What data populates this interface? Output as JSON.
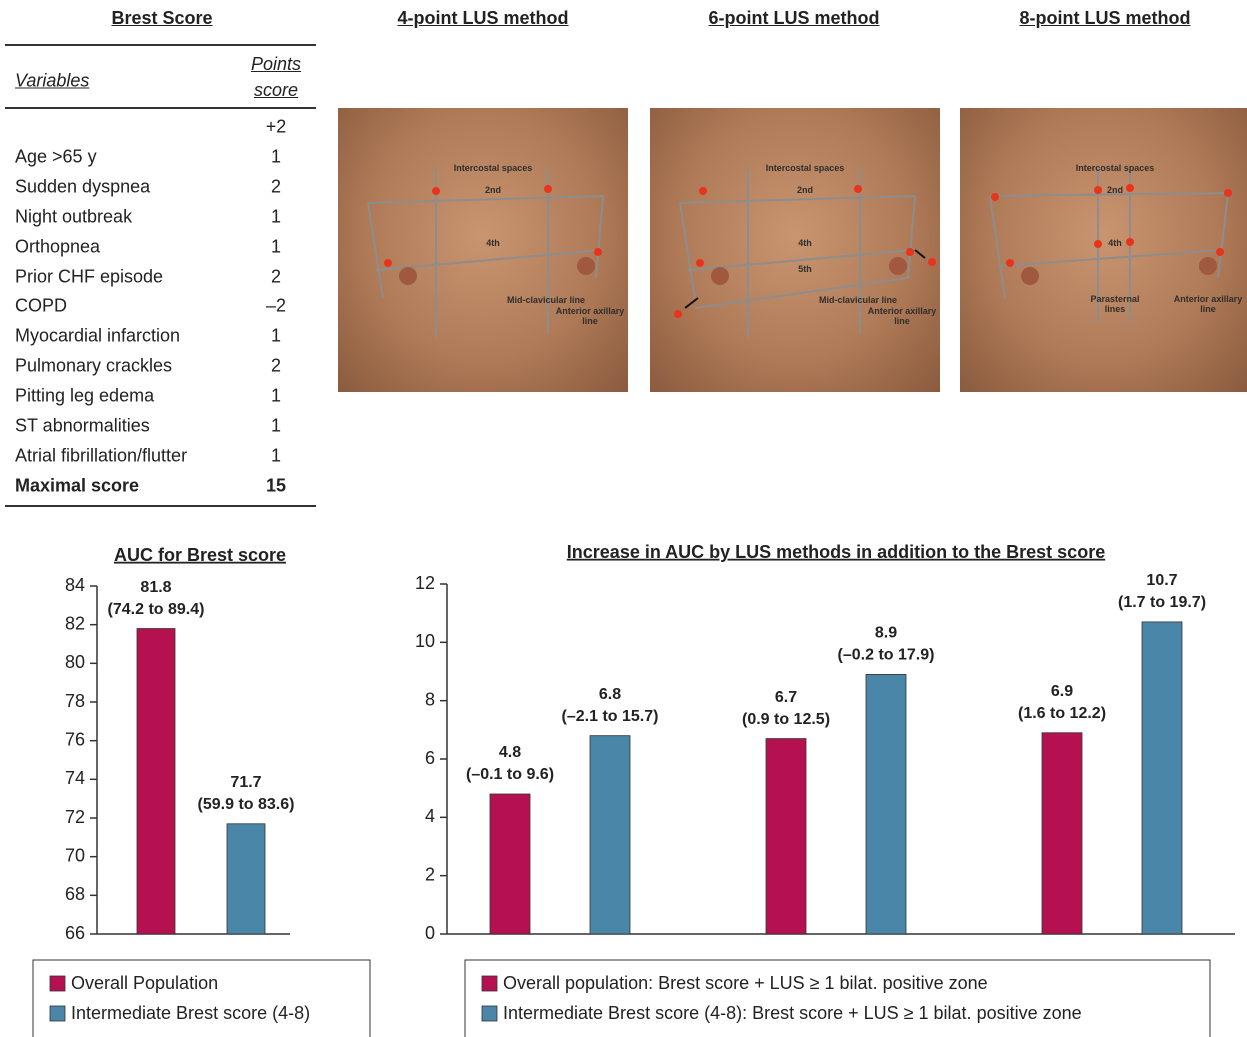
{
  "table": {
    "title": "Brest Score",
    "headers": [
      "Variables",
      "Points score"
    ],
    "rows": [
      {
        "points": "+2"
      },
      {
        "variable": "Age >65 y",
        "points": "1"
      },
      {
        "variable": "Sudden dyspnea",
        "points": "2"
      },
      {
        "variable": "Night outbreak",
        "points": "1"
      },
      {
        "variable": "Orthopnea",
        "points": "1"
      },
      {
        "variable": "Prior CHF episode",
        "points": "2"
      },
      {
        "variable": "COPD",
        "points": "–2"
      },
      {
        "variable": "Myocardial infarction",
        "points": "1"
      },
      {
        "variable": "Pulmonary crackles",
        "points": "2"
      },
      {
        "variable": "Pitting leg edema",
        "points": "1"
      },
      {
        "variable": "ST abnormalities",
        "points": "1"
      },
      {
        "variable": "Atrial fibrillation/flutter",
        "points": "1"
      },
      {
        "variable": "Maximal score",
        "points": "15"
      }
    ]
  },
  "images": [
    {
      "title": "4-point LUS method",
      "labels": [
        "Intercostal spaces",
        "2nd",
        "4th",
        "Mid-clavicular line",
        "Anterior axillary line"
      ]
    },
    {
      "title": "6-point LUS method",
      "labels": [
        "Intercostal spaces",
        "2nd",
        "4th",
        "5th",
        "Mid-clavicular line",
        "Anterior axillary line"
      ]
    },
    {
      "title": "8-point LUS method",
      "labels": [
        "Intercostal spaces",
        "2nd",
        "4th",
        "Parasternal lines",
        "Anterior axillary line"
      ]
    }
  ],
  "chart_data": [
    {
      "type": "bar",
      "title": "AUC for Brest score",
      "categories": [
        null
      ],
      "series": [
        {
          "name": "Overall Population",
          "color": "#b5104f",
          "values": [
            81.8
          ],
          "ci_labels": [
            "(74.2 to 89.4)"
          ]
        },
        {
          "name": "Intermediate Brest score (4-8)",
          "color": "#4a86a8",
          "values": [
            71.7
          ],
          "ci_labels": [
            "(59.9 to 83.6)"
          ]
        }
      ],
      "ylim": [
        66,
        84
      ],
      "yticks": [
        66,
        68,
        70,
        72,
        74,
        76,
        78,
        80,
        82,
        84
      ],
      "grid": false
    },
    {
      "type": "bar",
      "title": "Increase in AUC by LUS methods in addition to the Brest score",
      "categories": [
        null,
        null,
        null
      ],
      "series": [
        {
          "name": "Overall population: Brest score + LUS ≥ 1 bilat. positive zone",
          "color": "#b5104f",
          "values": [
            4.8,
            6.7,
            6.9
          ],
          "ci_labels": [
            "(–0.1 to 9.6)",
            "(0.9 to 12.5)",
            "(1.6 to 12.2)"
          ]
        },
        {
          "name": "Intermediate Brest score (4-8): Brest score + LUS ≥ 1 bilat. positive zone",
          "color": "#4a86a8",
          "values": [
            6.8,
            8.9,
            10.7
          ],
          "ci_labels": [
            "(–2.1 to 15.7)",
            "(–0.2 to 17.9)",
            "(1.7 to 19.7)"
          ]
        }
      ],
      "ylim": [
        0,
        12
      ],
      "yticks": [
        0,
        2,
        4,
        6,
        8,
        10,
        12
      ],
      "grid": false
    }
  ]
}
